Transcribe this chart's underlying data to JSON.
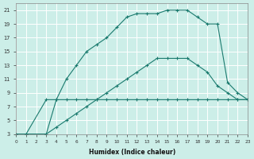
{
  "xlabel": "Humidex (Indice chaleur)",
  "bg_color": "#cceee8",
  "line_color": "#1a7a6e",
  "grid_color": "#ffffff",
  "grid_minor_color": "#e8d8d8",
  "xmin": 0,
  "xmax": 23,
  "ymin": 3,
  "ymax": 22,
  "curve1_x": [
    0,
    1,
    3,
    4,
    5,
    6,
    7,
    8,
    9,
    10,
    11,
    12,
    13,
    14,
    15,
    16,
    17,
    18,
    19,
    20,
    21,
    22,
    23
  ],
  "curve1_y": [
    3,
    3,
    8,
    8,
    8,
    8,
    8,
    8,
    8,
    8,
    8,
    8,
    8,
    8,
    8,
    8,
    8,
    8,
    8,
    8,
    8,
    8,
    8
  ],
  "curve2_x": [
    0,
    3,
    4,
    5,
    6,
    7,
    8,
    9,
    10,
    11,
    12,
    13,
    14,
    15,
    16,
    17,
    18,
    19,
    20,
    21,
    22,
    23
  ],
  "curve2_y": [
    3,
    3,
    4,
    5,
    6,
    7,
    8,
    9,
    10,
    11,
    12,
    13,
    14,
    14,
    14,
    14,
    13,
    12,
    10,
    9,
    8,
    8
  ],
  "curve3_x": [
    0,
    1,
    3,
    4,
    5,
    6,
    7,
    8,
    9,
    10,
    11,
    12,
    13,
    14,
    15,
    16,
    17,
    18,
    19,
    20,
    21,
    22,
    23
  ],
  "curve3_y": [
    3,
    3,
    3,
    8,
    11,
    13,
    15,
    16,
    17,
    18.5,
    20,
    20.5,
    20.5,
    20.5,
    21,
    21,
    21,
    20,
    19,
    19,
    10.5,
    9,
    8
  ]
}
